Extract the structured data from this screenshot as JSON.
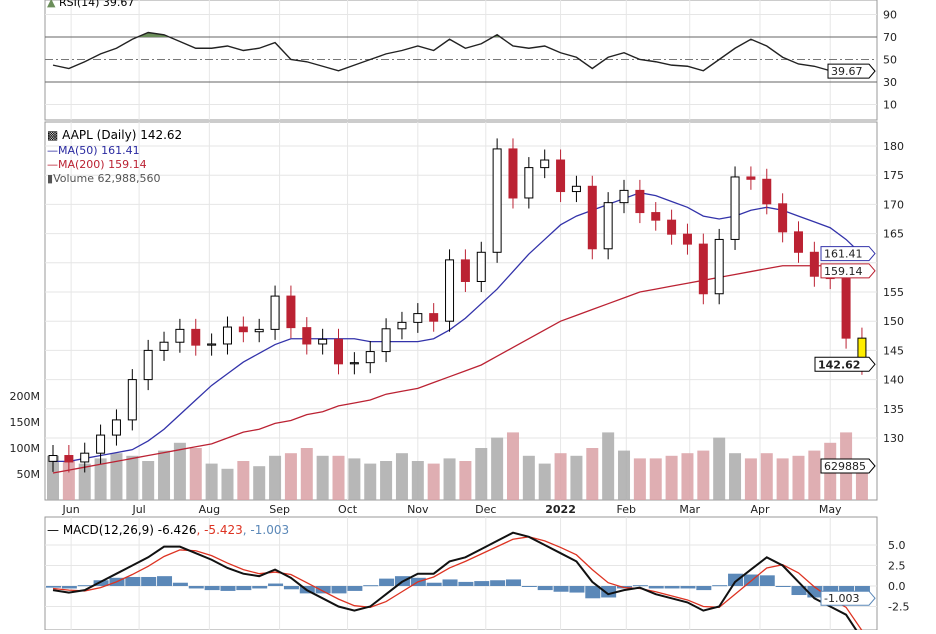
{
  "chart_data": {
    "type": "candlestick",
    "symbol_label": "AAPL (Daily) 142.62",
    "dates": [
      "2021-05-24",
      "2021-05-31",
      "2021-06-07",
      "2021-06-14",
      "2021-06-21",
      "2021-06-28",
      "2021-07-05",
      "2021-07-12",
      "2021-07-19",
      "2021-07-26",
      "2021-08-02",
      "2021-08-09",
      "2021-08-16",
      "2021-08-23",
      "2021-08-30",
      "2021-09-06",
      "2021-09-13",
      "2021-09-20",
      "2021-09-27",
      "2021-10-04",
      "2021-10-11",
      "2021-10-18",
      "2021-10-25",
      "2021-11-01",
      "2021-11-08",
      "2021-11-15",
      "2021-11-22",
      "2021-11-29",
      "2021-12-06",
      "2021-12-13",
      "2021-12-20",
      "2021-12-27",
      "2022-01-03",
      "2022-01-10",
      "2022-01-17",
      "2022-01-24",
      "2022-01-31",
      "2022-02-07",
      "2022-02-14",
      "2022-02-21",
      "2022-02-28",
      "2022-03-07",
      "2022-03-14",
      "2022-03-21",
      "2022-03-28",
      "2022-04-04",
      "2022-04-11",
      "2022-04-18",
      "2022-04-25",
      "2022-05-02",
      "2022-05-09",
      "2022-05-16"
    ],
    "close": [
      127,
      125.9,
      127.4,
      130.5,
      133.1,
      140,
      145,
      146.4,
      148.6,
      145.9,
      146.1,
      149,
      148.2,
      148.6,
      154.3,
      148.9,
      146.1,
      146.9,
      142.7,
      142.9,
      144.8,
      148.7,
      149.8,
      151.3,
      150,
      160.5,
      156.8,
      161.8,
      179.5,
      171.1,
      176.3,
      177.6,
      172.2,
      173.1,
      162.4,
      170.3,
      172.4,
      168.6,
      167.3,
      164.9,
      163.2,
      154.7,
      164,
      174.7,
      174.3,
      170.1,
      165.3,
      161.8,
      157.7,
      157.3,
      147.1,
      142.62
    ],
    "ma50": {
      "label": "MA(50) 161.41",
      "color": "#3333aa",
      "values": [
        126,
        126,
        126.5,
        127,
        127.5,
        128,
        129.5,
        131.5,
        134,
        136.5,
        139,
        141,
        143,
        144.5,
        146,
        147,
        147,
        147,
        147,
        147,
        146.5,
        146.5,
        146.5,
        146.5,
        147,
        148.5,
        150.5,
        153,
        155.5,
        158.5,
        161.5,
        164,
        166.5,
        168,
        169,
        170,
        171,
        172,
        171.5,
        170.5,
        169.5,
        168,
        167.5,
        168,
        169,
        169.5,
        169,
        168,
        167,
        166,
        164,
        161.41
      ]
    },
    "ma200": {
      "label": "MA(200) 159.14",
      "color": "#bb2233",
      "values": [
        124,
        124.5,
        125,
        125.5,
        126,
        126.5,
        127,
        127.5,
        128,
        128.5,
        129,
        130,
        131,
        131.5,
        132.5,
        133,
        134,
        134.5,
        135.5,
        136,
        136.5,
        137.5,
        138,
        138.5,
        139.5,
        140.5,
        141.5,
        142.5,
        144,
        145.5,
        147,
        148.5,
        150,
        151,
        152,
        153,
        154,
        155,
        155.5,
        156,
        156.5,
        157,
        157.5,
        158,
        158.5,
        159,
        159.5,
        159.5,
        159.5,
        159.5,
        159.3,
        159.14
      ]
    },
    "volume_label": "Volume 62,988,560",
    "volume_m": [
      85,
      75,
      70,
      80,
      90,
      85,
      75,
      95,
      110,
      100,
      70,
      60,
      75,
      65,
      85,
      90,
      100,
      85,
      85,
      80,
      70,
      75,
      90,
      75,
      70,
      80,
      75,
      100,
      120,
      130,
      85,
      70,
      90,
      85,
      100,
      130,
      95,
      80,
      80,
      85,
      90,
      95,
      120,
      90,
      80,
      90,
      80,
      85,
      95,
      110,
      130,
      63
    ],
    "price_axis": {
      "ticks": [
        130,
        135,
        140,
        145,
        150,
        155,
        160,
        165,
        170,
        175,
        180
      ],
      "labels": [
        "130",
        "135",
        "140",
        "145",
        "150",
        "155",
        "",
        "165",
        "170",
        "175",
        "180"
      ],
      "range": [
        125,
        184
      ]
    },
    "volume_axis": {
      "ticks": [
        50,
        100,
        150,
        200
      ],
      "labels": [
        "50M",
        "100M",
        "150M",
        "200M"
      ]
    },
    "months": [
      [
        "2021-06-01",
        "Jun"
      ],
      [
        "2021-07-01",
        "Jul"
      ],
      [
        "2021-08-01",
        "Aug"
      ],
      [
        "2021-09-01",
        "Sep"
      ],
      [
        "2021-10-01",
        "Oct"
      ],
      [
        "2021-11-01",
        "Nov"
      ],
      [
        "2021-12-01",
        "Dec"
      ],
      [
        "2022-01-03",
        "2022"
      ],
      [
        "2022-02-01",
        "Feb"
      ],
      [
        "2022-03-01",
        "Mar"
      ],
      [
        "2022-04-01",
        "Apr"
      ],
      [
        "2022-05-02",
        "May"
      ]
    ],
    "tags": {
      "price": "142.62",
      "ma50": "161.41",
      "ma200": "159.14",
      "volume": "629885",
      "rsi": "39.67",
      "macd_hist": "-1.003"
    },
    "rsi": {
      "label": "RSI(14) 39.67",
      "ticks": [
        10,
        30,
        50,
        70,
        90
      ],
      "overbought": 70,
      "oversold": 30,
      "values": [
        45,
        42,
        48,
        55,
        60,
        68,
        74,
        72,
        66,
        60,
        60,
        62,
        58,
        60,
        65,
        50,
        48,
        44,
        40,
        45,
        50,
        55,
        58,
        62,
        58,
        68,
        60,
        64,
        72,
        62,
        60,
        62,
        56,
        52,
        42,
        52,
        56,
        50,
        48,
        45,
        44,
        40,
        50,
        60,
        68,
        62,
        52,
        46,
        44,
        40,
        36,
        39.67
      ]
    },
    "macd": {
      "label": "MACD(12,26,9) -6.426",
      "signal_label": ", -5.423",
      "hist_label": ", -1.003",
      "ticks": [
        -2.5,
        0,
        2.5,
        5.0
      ],
      "tick_labels": [
        "-2.5",
        "0.0",
        "2.5",
        "5.0"
      ],
      "macd": [
        -0.5,
        -0.8,
        -0.5,
        0.5,
        1.5,
        2.5,
        3.5,
        4.8,
        4.8,
        4.0,
        3.2,
        2.2,
        1.5,
        1.2,
        2.0,
        1.0,
        -0.5,
        -1.5,
        -2.5,
        -3.0,
        -2.5,
        -1.0,
        0.5,
        1.5,
        1.5,
        3.0,
        3.5,
        4.5,
        5.5,
        6.5,
        6.0,
        5.0,
        4.0,
        3.0,
        0.5,
        -1.0,
        -0.5,
        -0.2,
        -1.0,
        -1.5,
        -2.0,
        -3.0,
        -2.5,
        0.5,
        2.0,
        3.5,
        2.5,
        0.5,
        -1.5,
        -2.5,
        -3.5,
        -6.426
      ],
      "signal": [
        -0.3,
        -0.5,
        -0.6,
        -0.2,
        0.5,
        1.4,
        2.4,
        3.6,
        4.4,
        4.3,
        3.7,
        2.8,
        2.0,
        1.5,
        1.7,
        1.4,
        0.4,
        -0.6,
        -1.6,
        -2.4,
        -2.6,
        -1.9,
        -0.7,
        0.5,
        1.1,
        2.2,
        3.0,
        3.9,
        4.8,
        5.7,
        6.0,
        5.5,
        4.7,
        3.8,
        2.0,
        0.4,
        -0.2,
        -0.3,
        -0.7,
        -1.2,
        -1.7,
        -2.5,
        -2.6,
        -1.0,
        0.6,
        2.2,
        2.6,
        1.6,
        -0.1,
        -1.5,
        -2.6,
        -5.423
      ]
    },
    "colors": {
      "up": "#000000",
      "down": "#bb2233",
      "last": "#ffee00",
      "vol_up": "#aaaaaa",
      "vol_down": "#d9a0a5",
      "rsi_fill": "#6b8e5a",
      "hist": "#5b88b8",
      "signal": "#dd3322"
    }
  }
}
